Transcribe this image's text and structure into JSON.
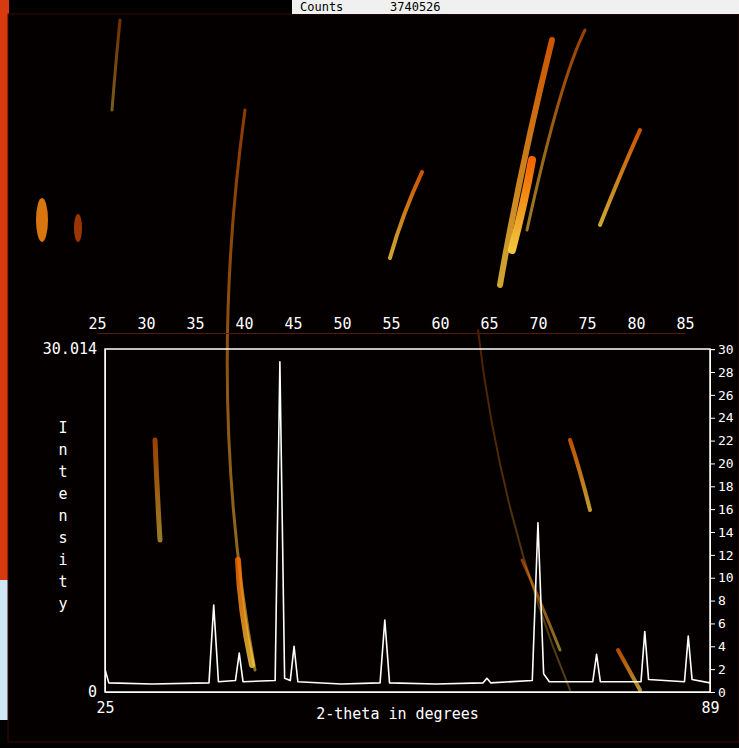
{
  "chart_data": [
    {
      "type": "image",
      "annotations": [
        "Counts",
        "3740526"
      ],
      "xlim": [
        25,
        85
      ],
      "xticks": [
        25,
        30,
        35,
        40,
        45,
        50,
        55,
        60,
        65,
        70,
        75,
        80,
        85
      ],
      "tick_labels": "x"
    },
    {
      "type": "line",
      "xlabel": "2-theta in degrees",
      "ylabel": "Intensity",
      "color": "#ffffff",
      "x": [
        25,
        25.4,
        30,
        36.0,
        36.5,
        37.0,
        38.8,
        39.2,
        39.6,
        43.0,
        43.5,
        44.0,
        44.6,
        45.0,
        45.4,
        50,
        54.1,
        54.6,
        55.1,
        60,
        65.0,
        65.4,
        65.8,
        70.2,
        70.8,
        71.4,
        72.0,
        76.6,
        77.0,
        77.4,
        81.7,
        82.1,
        82.5,
        86.3,
        86.7,
        87.1,
        89
      ],
      "values": [
        2.0,
        0.8,
        0.7,
        0.8,
        7.6,
        0.9,
        1.0,
        3.4,
        0.9,
        1.0,
        28.9,
        1.2,
        1.0,
        4.0,
        0.9,
        0.7,
        0.8,
        6.3,
        0.8,
        0.7,
        0.8,
        1.2,
        0.8,
        1.0,
        14.8,
        1.6,
        0.9,
        0.9,
        3.3,
        0.9,
        0.9,
        5.3,
        1.1,
        0.9,
        4.9,
        1.1,
        0.8
      ],
      "xlim": [
        25,
        89
      ],
      "xticks": [
        25,
        89
      ],
      "ylim": [
        0,
        30.014
      ],
      "yticks": [
        0,
        30.014
      ],
      "y2lim": [
        0,
        30.014
      ],
      "y2ticks": [
        0,
        2,
        4,
        6,
        8,
        10,
        12,
        14,
        16,
        18,
        20,
        22,
        24,
        26,
        28,
        30
      ]
    }
  ]
}
